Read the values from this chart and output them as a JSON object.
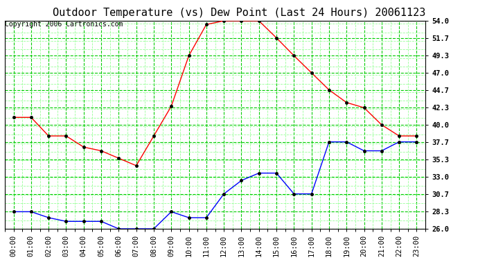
{
  "title": "Outdoor Temperature (vs) Dew Point (Last 24 Hours) 20061123",
  "copyright": "Copyright 2006 Cartronics.com",
  "x_labels": [
    "00:00",
    "01:00",
    "02:00",
    "03:00",
    "04:00",
    "05:00",
    "06:00",
    "07:00",
    "08:00",
    "09:00",
    "10:00",
    "11:00",
    "12:00",
    "13:00",
    "14:00",
    "15:00",
    "16:00",
    "17:00",
    "18:00",
    "19:00",
    "20:00",
    "21:00",
    "22:00",
    "23:00"
  ],
  "temp_data": [
    41.0,
    41.0,
    38.5,
    38.5,
    37.0,
    36.5,
    35.5,
    34.5,
    38.5,
    42.5,
    49.3,
    53.5,
    54.0,
    54.0,
    54.0,
    51.7,
    49.3,
    47.0,
    44.7,
    43.0,
    42.3,
    40.0,
    38.5,
    38.5
  ],
  "dew_data": [
    28.3,
    28.3,
    27.5,
    27.0,
    27.0,
    27.0,
    26.0,
    26.0,
    26.0,
    28.3,
    27.5,
    27.5,
    30.7,
    32.5,
    33.5,
    33.5,
    30.7,
    30.7,
    37.7,
    37.7,
    36.5,
    36.5,
    37.7,
    37.7
  ],
  "temp_color": "#ff0000",
  "dew_color": "#0000ff",
  "bg_color": "#ffffff",
  "grid_color": "#00cc00",
  "grid_minor_color": "#99ff99",
  "ylim": [
    26.0,
    54.0
  ],
  "yticks": [
    26.0,
    28.3,
    30.7,
    33.0,
    35.3,
    37.7,
    40.0,
    42.3,
    44.7,
    47.0,
    49.3,
    51.7,
    54.0
  ],
  "title_fontsize": 11,
  "copyright_fontsize": 7,
  "tick_fontsize": 7.5,
  "marker_size": 3
}
